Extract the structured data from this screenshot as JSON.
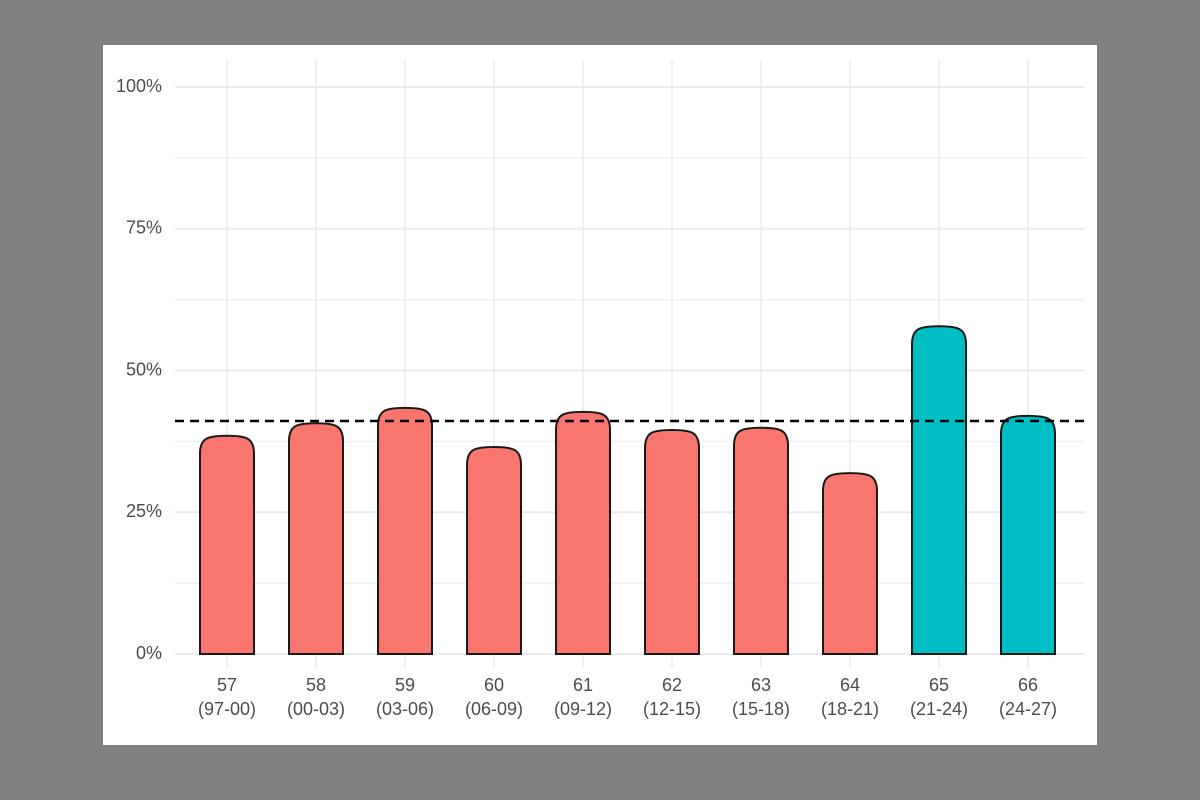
{
  "chart_data": {
    "type": "bar",
    "categories": [
      [
        "57",
        "(97-00)"
      ],
      [
        "58",
        "(00-03)"
      ],
      [
        "59",
        "(03-06)"
      ],
      [
        "60",
        "(06-09)"
      ],
      [
        "61",
        "(09-12)"
      ],
      [
        "62",
        "(12-15)"
      ],
      [
        "63",
        "(15-18)"
      ],
      [
        "64",
        "(18-21)"
      ],
      [
        "65",
        "(21-24)"
      ],
      [
        "66",
        "(24-27)"
      ]
    ],
    "values": [
      38.5,
      40.7,
      43.4,
      36.5,
      42.7,
      39.5,
      39.9,
      31.9,
      57.8,
      42.0
    ],
    "colors": [
      "#f8766d",
      "#f8766d",
      "#f8766d",
      "#f8766d",
      "#f8766d",
      "#f8766d",
      "#f8766d",
      "#f8766d",
      "#00bfc4",
      "#00bfc4"
    ],
    "reference_line": 41.1,
    "ylim": [
      0,
      100
    ],
    "yticks": [
      {
        "value": 0,
        "label": "0%"
      },
      {
        "value": 25,
        "label": "25%"
      },
      {
        "value": 50,
        "label": "50%"
      },
      {
        "value": 75,
        "label": "75%"
      },
      {
        "value": 100,
        "label": "100%"
      }
    ],
    "minor_yticks": [
      12.5,
      37.5,
      62.5,
      87.5
    ],
    "grid": true
  }
}
